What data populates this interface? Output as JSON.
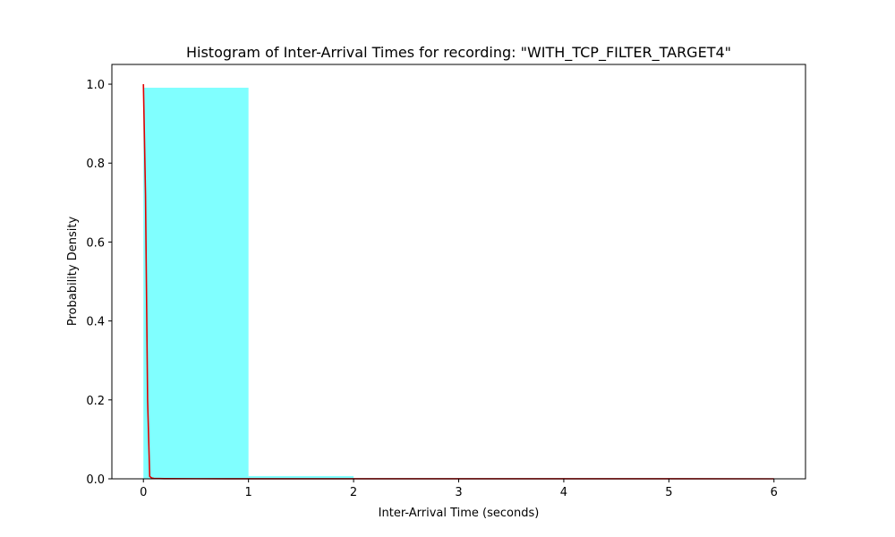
{
  "chart_data": {
    "type": "bar",
    "title": "Histogram of Inter-Arrival Times for recording: \"WITH_TCP_FILTER_TARGET4\"",
    "xlabel": "Inter-Arrival Time (seconds)",
    "ylabel": "Probability Density",
    "xlim": [
      -0.3,
      6.3
    ],
    "ylim": [
      0,
      1.05
    ],
    "x_ticks": [
      0,
      1,
      2,
      3,
      4,
      5,
      6
    ],
    "y_ticks": [
      0.0,
      0.2,
      0.4,
      0.6,
      0.8,
      1.0
    ],
    "x_tick_labels": [
      "0",
      "1",
      "2",
      "3",
      "4",
      "5",
      "6"
    ],
    "y_tick_labels": [
      "0.0",
      "0.2",
      "0.4",
      "0.6",
      "0.8",
      "1.0"
    ],
    "grid": false,
    "histogram": {
      "bins": [
        {
          "x0": 0,
          "x1": 1,
          "value": 0.991
        },
        {
          "x0": 1,
          "x1": 2,
          "value": 0.007
        },
        {
          "x0": 2,
          "x1": 3,
          "value": 0.0005
        },
        {
          "x0": 3,
          "x1": 4,
          "value": 0.0003
        },
        {
          "x0": 4,
          "x1": 5,
          "value": 0.0002
        },
        {
          "x0": 5,
          "x1": 6,
          "value": 0.0001
        }
      ],
      "color": "#80ffff"
    },
    "line": {
      "color": "#e00000",
      "x": [
        0,
        0.02,
        0.04,
        0.06,
        0.08,
        0.1,
        0.2,
        0.5,
        1,
        2,
        3,
        4,
        5,
        6
      ],
      "y": [
        1.0,
        0.72,
        0.2,
        0.006,
        0.002,
        0.001,
        0.0005,
        0.0003,
        0.0002,
        0.0001,
        0.0001,
        0.0001,
        0.0001,
        0.0
      ]
    }
  }
}
